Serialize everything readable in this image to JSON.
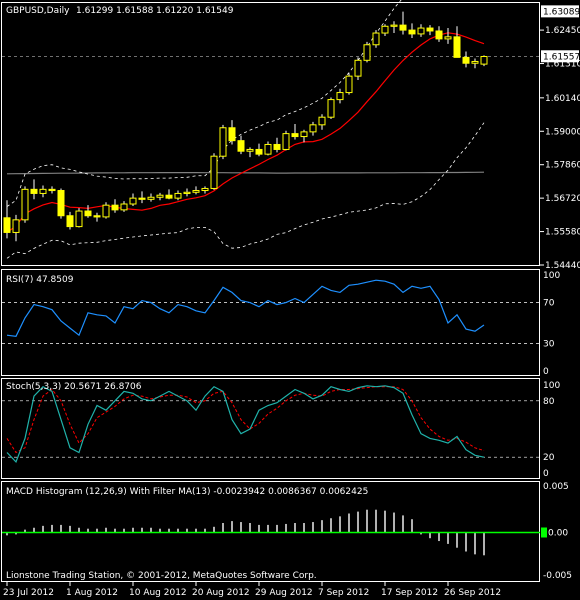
{
  "colors": {
    "background": "#000000",
    "panel_border": "#ffffff",
    "candle_body": "#ffff00",
    "candle_wick": "#ffffff",
    "ma_red": "#ff0000",
    "ma_gray": "#808080",
    "bands": "#ffffff",
    "rsi_line": "#1e90ff",
    "stoch_main": "#20b2aa",
    "stoch_signal": "#ff0000",
    "macd_hist": "#ffffff",
    "macd_zero": "#00ff00",
    "level_dash": "#ffffff"
  },
  "main_panel": {
    "header": "GBPUSD,Daily",
    "ohlc": "1.61299 1.61588 1.61220 1.61549",
    "price_ticks": [
      "1.62450",
      "1.61310",
      "1.60140",
      "1.59000",
      "1.57860",
      "1.56720",
      "1.55580",
      "1.54440"
    ],
    "highlight_high": "1.63089",
    "highlight_current": "1.61557"
  },
  "rsi_panel": {
    "header": "RSI(7) 47.8509",
    "ticks": [
      "100",
      "70",
      "30",
      "0"
    ]
  },
  "stoch_panel": {
    "header": "Stoch(5,3,3) 20.5671 26.8706",
    "ticks": [
      "100",
      "80",
      "20",
      "0"
    ]
  },
  "macd_panel": {
    "header": "MACD Histogram (12,26,9) With Filter MA(13) -0.0023942 0.0086367 0.0062425",
    "ticks": [
      "0.005",
      "0.00",
      "-0.005"
    ],
    "zero_label": "0.00"
  },
  "footer": {
    "copyright": "Lionstone Trading Station, © 2001-2012, MetaQuotes Software Corp."
  },
  "date_axis": [
    "23 Jul 2012",
    "1 Aug 2012",
    "10 Aug 2012",
    "20 Aug 2012",
    "29 Aug 2012",
    "7 Sep 2012",
    "17 Sep 2012",
    "26 Sep 2012"
  ],
  "chart_data": [
    {
      "type": "candlestick",
      "title": "GBPUSD,Daily",
      "ylim": [
        1.5444,
        1.6334
      ],
      "series": [
        {
          "name": "candles",
          "values": [
            [
              1.5605,
              1.5665,
              1.5535,
              1.5555
            ],
            [
              1.5555,
              1.5615,
              1.5525,
              1.5598
            ],
            [
              1.5598,
              1.5712,
              1.5588,
              1.5702
            ],
            [
              1.5702,
              1.5736,
              1.5668,
              1.5688
            ],
            [
              1.5688,
              1.5715,
              1.5675,
              1.5702
            ],
            [
              1.5702,
              1.5712,
              1.5688,
              1.5698
            ],
            [
              1.5698,
              1.5705,
              1.5602,
              1.5612
            ],
            [
              1.5612,
              1.5625,
              1.5565,
              1.5575
            ],
            [
              1.5575,
              1.5638,
              1.5572,
              1.5628
            ],
            [
              1.5628,
              1.5648,
              1.5605,
              1.5612
            ],
            [
              1.5612,
              1.5622,
              1.5592,
              1.5608
            ],
            [
              1.5608,
              1.5658,
              1.5602,
              1.5648
            ],
            [
              1.5648,
              1.5668,
              1.5622,
              1.5632
            ],
            [
              1.5632,
              1.5662,
              1.5625,
              1.5652
            ],
            [
              1.5652,
              1.5688,
              1.5645,
              1.5672
            ],
            [
              1.5672,
              1.5695,
              1.5655,
              1.5668
            ],
            [
              1.5668,
              1.5688,
              1.566,
              1.5675
            ],
            [
              1.5675,
              1.569,
              1.5665,
              1.5682
            ],
            [
              1.5682,
              1.5702,
              1.5668,
              1.5672
            ],
            [
              1.5672,
              1.5698,
              1.5665,
              1.5688
            ],
            [
              1.5688,
              1.5705,
              1.5678,
              1.5692
            ],
            [
              1.5692,
              1.5712,
              1.5685,
              1.5698
            ],
            [
              1.5698,
              1.5712,
              1.5688,
              1.5705
            ],
            [
              1.5705,
              1.5825,
              1.57,
              1.5815
            ],
            [
              1.5815,
              1.5922,
              1.5805,
              1.5912
            ],
            [
              1.5912,
              1.5938,
              1.5855,
              1.5868
            ],
            [
              1.5868,
              1.5885,
              1.5822,
              1.5832
            ],
            [
              1.5832,
              1.5845,
              1.5812,
              1.5838
            ],
            [
              1.5838,
              1.5858,
              1.5815,
              1.5822
            ],
            [
              1.5822,
              1.5865,
              1.5818,
              1.5855
            ],
            [
              1.5855,
              1.5878,
              1.5828,
              1.5838
            ],
            [
              1.5838,
              1.5902,
              1.5835,
              1.5892
            ],
            [
              1.5892,
              1.5925,
              1.5872,
              1.5882
            ],
            [
              1.5882,
              1.5905,
              1.5862,
              1.5898
            ],
            [
              1.5898,
              1.5932,
              1.5885,
              1.5922
            ],
            [
              1.5922,
              1.5958,
              1.5905,
              1.5948
            ],
            [
              1.5948,
              1.6015,
              1.5942,
              1.6008
            ],
            [
              1.6008,
              1.6045,
              1.5995,
              1.6032
            ],
            [
              1.6032,
              1.6098,
              1.6025,
              1.6088
            ],
            [
              1.6088,
              1.6152,
              1.6075,
              1.6142
            ],
            [
              1.6142,
              1.6205,
              1.6135,
              1.6195
            ],
            [
              1.6195,
              1.6245,
              1.6185,
              1.6235
            ],
            [
              1.6235,
              1.6265,
              1.6225,
              1.6258
            ],
            [
              1.6258,
              1.6275,
              1.6235,
              1.6262
            ],
            [
              1.6262,
              1.6308,
              1.623,
              1.6245
            ],
            [
              1.6245,
              1.6268,
              1.6218,
              1.6232
            ],
            [
              1.6232,
              1.6265,
              1.6222,
              1.6252
            ],
            [
              1.6252,
              1.6262,
              1.6228,
              1.6242
            ],
            [
              1.6242,
              1.6258,
              1.6205,
              1.6215
            ],
            [
              1.6215,
              1.6252,
              1.6198,
              1.6222
            ],
            [
              1.6222,
              1.6258,
              1.6192,
              1.6152
            ],
            [
              1.6152,
              1.6172,
              1.6118,
              1.6132
            ],
            [
              1.6132,
              1.6148,
              1.6115,
              1.6138
            ],
            [
              1.6129,
              1.6159,
              1.6122,
              1.6155
            ]
          ]
        }
      ]
    },
    {
      "type": "line",
      "title": "RSI(7) 47.8509",
      "ylim": [
        0,
        100
      ],
      "series": [
        {
          "name": "RSI(7)",
          "values": [
            38,
            37,
            55,
            68,
            66,
            63,
            52,
            45,
            38,
            60,
            58,
            57,
            50,
            66,
            64,
            72,
            70,
            64,
            60,
            68,
            66,
            62,
            60,
            72,
            85,
            80,
            72,
            70,
            66,
            72,
            68,
            70,
            74,
            70,
            78,
            86,
            82,
            80,
            87,
            88,
            90,
            92,
            91,
            88,
            80,
            86,
            84,
            86,
            73,
            50,
            58,
            44,
            42,
            48
          ]
        }
      ]
    },
    {
      "type": "line",
      "title": "Stoch(5,3,3) 20.5671 26.8706",
      "ylim": [
        0,
        100
      ],
      "series": [
        {
          "name": "main",
          "values": [
            25,
            15,
            40,
            85,
            95,
            90,
            60,
            30,
            25,
            55,
            75,
            70,
            80,
            90,
            88,
            82,
            80,
            85,
            90,
            85,
            80,
            70,
            85,
            95,
            90,
            60,
            45,
            50,
            70,
            75,
            78,
            85,
            92,
            88,
            82,
            86,
            95,
            92,
            90,
            94,
            96,
            95,
            96,
            94,
            88,
            65,
            45,
            40,
            38,
            35,
            42,
            28,
            22,
            20
          ]
        },
        {
          "name": "signal",
          "values": [
            40,
            25,
            30,
            60,
            85,
            92,
            80,
            55,
            35,
            45,
            62,
            68,
            74,
            82,
            86,
            85,
            82,
            84,
            86,
            86,
            84,
            78,
            80,
            88,
            90,
            78,
            60,
            50,
            56,
            66,
            72,
            80,
            86,
            88,
            86,
            85,
            90,
            92,
            92,
            93,
            94,
            95,
            95,
            95,
            92,
            80,
            62,
            50,
            42,
            38,
            40,
            36,
            30,
            27
          ]
        }
      ]
    },
    {
      "type": "bar",
      "title": "MACD Histogram (12,26,9) With Filter MA(13) -0.0023942 0.0086367 0.0062425",
      "ylim": [
        -0.005,
        0.005
      ],
      "series": [
        {
          "name": "histogram",
          "values": [
            -0.0003,
            -0.0002,
            0.0003,
            0.0005,
            0.0007,
            0.0008,
            0.0008,
            0.0007,
            0.0005,
            0.0004,
            0.0004,
            0.0005,
            0.0004,
            0.0004,
            0.0005,
            0.0005,
            0.0005,
            0.0004,
            0.0004,
            0.0004,
            0.0004,
            0.0004,
            0.0004,
            0.0006,
            0.001,
            0.0012,
            0.0011,
            0.001,
            0.0008,
            0.0008,
            0.0008,
            0.0009,
            0.001,
            0.001,
            0.0011,
            0.0013,
            0.0015,
            0.0017,
            0.002,
            0.0022,
            0.0024,
            0.0024,
            0.0023,
            0.0021,
            0.0018,
            0.0014,
            -0.0002,
            -0.0006,
            -0.0009,
            -0.0012,
            -0.0016,
            -0.002,
            -0.0023,
            -0.0024
          ]
        }
      ]
    }
  ]
}
